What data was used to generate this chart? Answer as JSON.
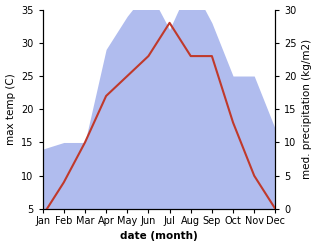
{
  "months": [
    "Jan",
    "Feb",
    "Mar",
    "Apr",
    "May",
    "Jun",
    "Jul",
    "Aug",
    "Sep",
    "Oct",
    "Nov",
    "Dec"
  ],
  "temperature": [
    4,
    9,
    15,
    22,
    25,
    28,
    33,
    28,
    28,
    18,
    10,
    5
  ],
  "precipitation": [
    9,
    10,
    10,
    24,
    29,
    33,
    27,
    34,
    28,
    20,
    20,
    12
  ],
  "temp_color": "#c0392b",
  "precip_color": "#b0bcee",
  "temp_ylim": [
    5,
    35
  ],
  "precip_ylim": [
    0,
    30
  ],
  "temp_yticks": [
    5,
    10,
    15,
    20,
    25,
    30,
    35
  ],
  "precip_yticks": [
    0,
    5,
    10,
    15,
    20,
    25,
    30
  ],
  "xlabel": "date (month)",
  "ylabel_left": "max temp (C)",
  "ylabel_right": "med. precipitation (kg/m2)",
  "axis_fontsize": 7.5,
  "tick_fontsize": 7
}
